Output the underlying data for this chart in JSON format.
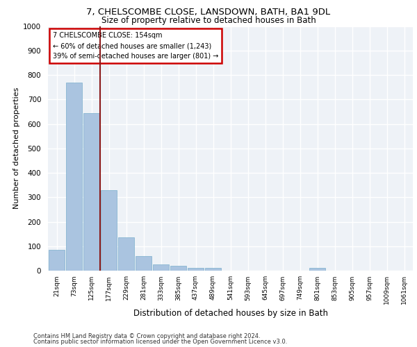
{
  "title_line1": "7, CHELSCOMBE CLOSE, LANSDOWN, BATH, BA1 9DL",
  "title_line2": "Size of property relative to detached houses in Bath",
  "xlabel": "Distribution of detached houses by size in Bath",
  "ylabel": "Number of detached properties",
  "bins": [
    "21sqm",
    "73sqm",
    "125sqm",
    "177sqm",
    "229sqm",
    "281sqm",
    "333sqm",
    "385sqm",
    "437sqm",
    "489sqm",
    "541sqm",
    "593sqm",
    "645sqm",
    "697sqm",
    "749sqm",
    "801sqm",
    "853sqm",
    "905sqm",
    "957sqm",
    "1009sqm",
    "1061sqm"
  ],
  "values": [
    85,
    770,
    645,
    330,
    135,
    60,
    25,
    20,
    10,
    10,
    0,
    0,
    0,
    0,
    0,
    10,
    0,
    0,
    0,
    0,
    0
  ],
  "bar_color": "#aac4e0",
  "bar_edge_color": "#7aaecc",
  "vline_x_index": 2.515,
  "vline_color": "#8b1a1a",
  "annotation_text": "7 CHELSCOMBE CLOSE: 154sqm\n← 60% of detached houses are smaller (1,243)\n39% of semi-detached houses are larger (801) →",
  "annotation_box_color": "#cc0000",
  "ylim": [
    0,
    1000
  ],
  "yticks": [
    0,
    100,
    200,
    300,
    400,
    500,
    600,
    700,
    800,
    900,
    1000
  ],
  "background_color": "#eef2f7",
  "grid_color": "#ffffff",
  "footer_line1": "Contains HM Land Registry data © Crown copyright and database right 2024.",
  "footer_line2": "Contains public sector information licensed under the Open Government Licence v3.0."
}
